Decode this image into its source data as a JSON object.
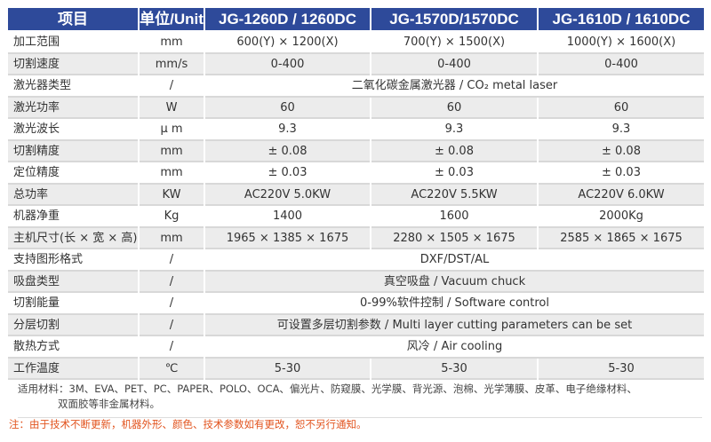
{
  "header": [
    "项目",
    "单位/Unit",
    "JG-1260D / 1260DC",
    "JG-1570D/1570DC",
    "JG-1610D / 1610DC"
  ],
  "rows": [
    {
      "item": "加工范围",
      "unit": "mm",
      "values": [
        "600(Y) × 1200(X)",
        "700(Y) × 1500(X)",
        "1000(Y) × 1600(X)"
      ]
    },
    {
      "item": "切割速度",
      "unit": "mm/s",
      "values": [
        "0-400",
        "0-400",
        "0-400"
      ]
    },
    {
      "item": "激光器类型",
      "unit": "/",
      "merged": "二氧化碳金属激光器 / CO₂ metal laser"
    },
    {
      "item": "激光功率",
      "unit": "W",
      "values": [
        "60",
        "60",
        "60"
      ]
    },
    {
      "item": "激光波长",
      "unit": "μ m",
      "values": [
        "9.3",
        "9.3",
        "9.3"
      ]
    },
    {
      "item": "切割精度",
      "unit": "mm",
      "values": [
        "± 0.08",
        "± 0.08",
        "± 0.08"
      ]
    },
    {
      "item": "定位精度",
      "unit": "mm",
      "values": [
        "± 0.03",
        "± 0.03",
        "± 0.03"
      ]
    },
    {
      "item": "总功率",
      "unit": "KW",
      "values": [
        "AC220V  5.0KW",
        "AC220V  5.5KW",
        "AC220V  6.0KW"
      ]
    },
    {
      "item": "机器净重",
      "unit": "Kg",
      "values": [
        "1400",
        "1600",
        "2000Kg"
      ]
    },
    {
      "item": "主机尺寸(长 × 宽 × 高)",
      "unit": "mm",
      "values": [
        "1965 × 1385 × 1675",
        "2280 × 1505 × 1675",
        "2585 × 1865 × 1675"
      ]
    },
    {
      "item": "支持图形格式",
      "unit": "/",
      "merged": "DXF/DST/AL"
    },
    {
      "item": "吸盘类型",
      "unit": "/",
      "merged": "真空吸盘 / Vacuum chuck"
    },
    {
      "item": "切割能量",
      "unit": "/",
      "merged": "0-99%软件控制 / Software control"
    },
    {
      "item": "分层切割",
      "unit": "/",
      "merged": "可设置多层切割参数 / Multi layer cutting parameters can be set"
    },
    {
      "item": "散热方式",
      "unit": "/",
      "merged": "风冷 / Air cooling"
    },
    {
      "item": "工作温度",
      "unit": "℃",
      "values": [
        "5-30",
        "5-30",
        "5-30"
      ]
    }
  ],
  "materials_line1": "适用材料：3M、EVA、PET、PC、PAPER、POLO、OCA、偏光片、防窥膜、光学膜、背光源、泡棉、光学薄膜、皮革、电子绝缘材料、",
  "materials_line2": "双面胶等非金属材料。",
  "note": "注：由于技术不断更新，机器外形、颜色、技术参数如有更改，恕不另行通知。",
  "colors": {
    "header": "#2e4a9a",
    "alt_row": "#ececec",
    "note": "#e2541f"
  }
}
